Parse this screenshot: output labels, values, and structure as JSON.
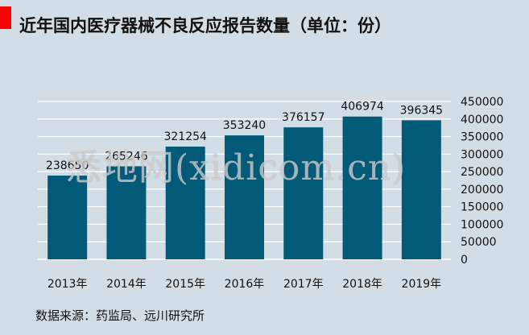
{
  "title": "近年国内医疗器械不良反应报告数量（单位：份）",
  "watermark": "悉地网(xidicom.cn)",
  "source": "数据来源：药监局、远川研究所",
  "colors": {
    "accent": "#ff0000",
    "bar": "#005a78",
    "background": "#d3dde6",
    "grid": "#ffffff"
  },
  "chart_data": {
    "type": "bar",
    "categories": [
      "2013年",
      "2014年",
      "2015年",
      "2016年",
      "2017年",
      "2018年",
      "2019年"
    ],
    "values": [
      238650,
      265246,
      321254,
      353240,
      376157,
      406974,
      396345
    ],
    "data_labels": [
      "238650",
      "265246",
      "321254",
      "353240",
      "376157",
      "406974",
      "396345"
    ],
    "title": "近年国内医疗器械不良反应报告数量（单位：份）",
    "xlabel": "",
    "ylabel": "",
    "ylim": [
      0,
      450000
    ],
    "yticks": [
      0,
      50000,
      100000,
      150000,
      200000,
      250000,
      300000,
      350000,
      400000,
      450000
    ],
    "ytick_labels": [
      "0",
      "50000",
      "100000",
      "150000",
      "200000",
      "250000",
      "300000",
      "350000",
      "400000",
      "450000"
    ],
    "y_axis_position": "right",
    "grid": true,
    "legend": "none"
  }
}
